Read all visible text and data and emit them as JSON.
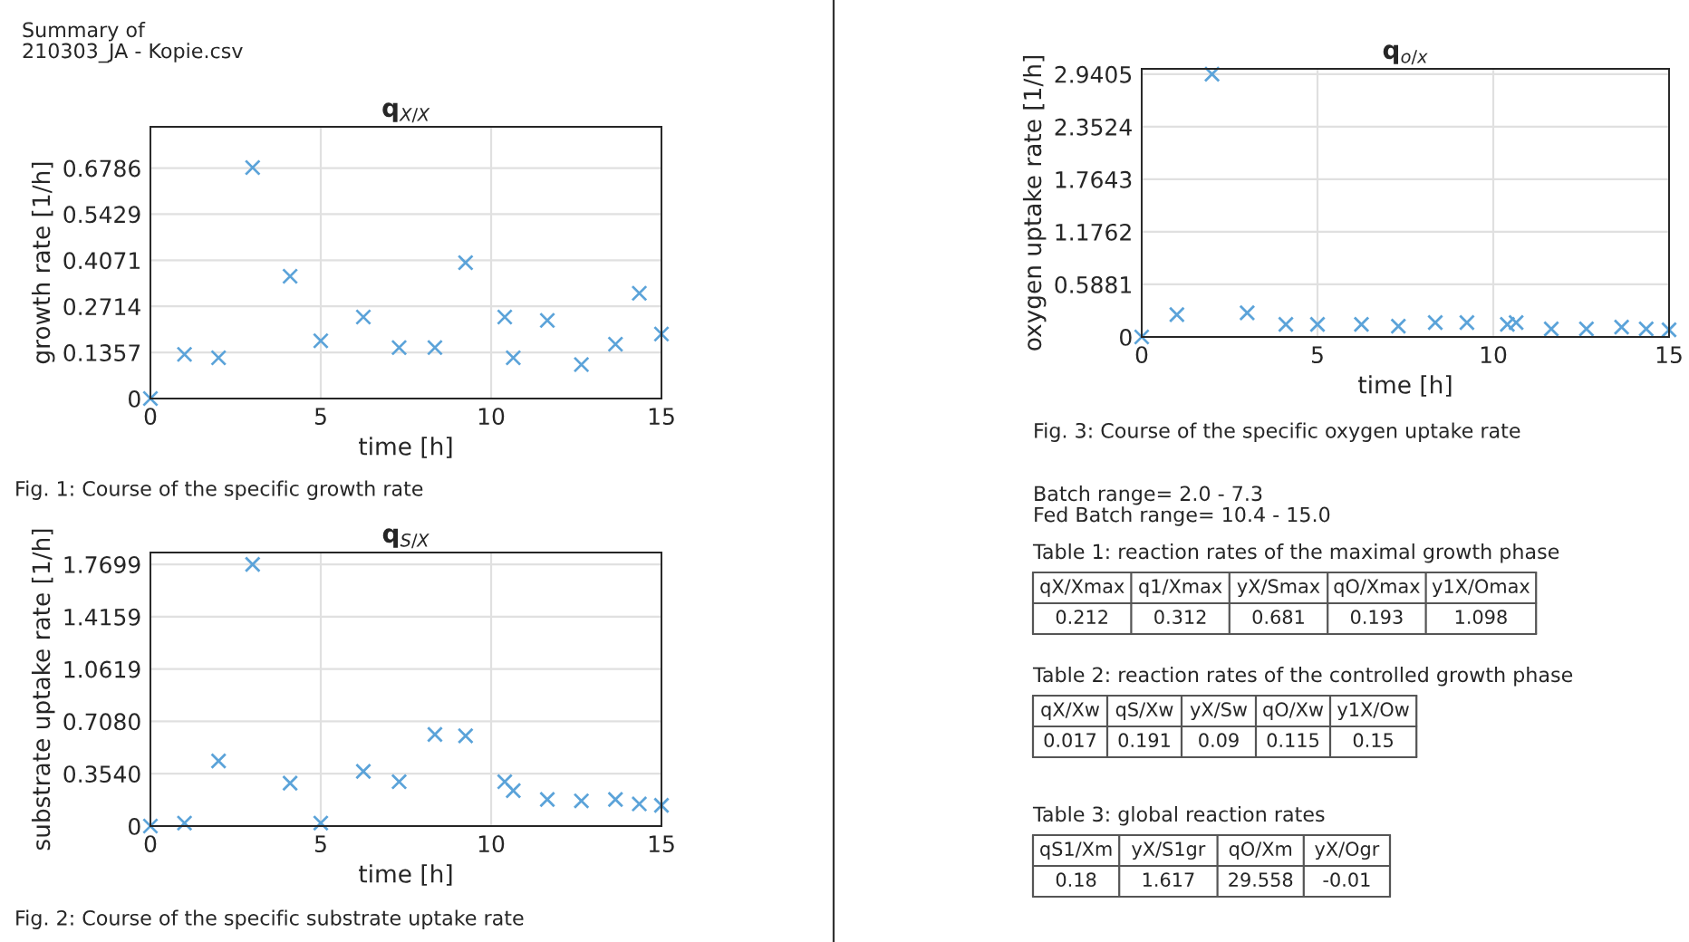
{
  "chart_data": [
    {
      "type": "scatter",
      "title": "q$_{X/X}$",
      "xlabel": "time [h]",
      "ylabel": "growth rate [1/h]",
      "marker": "cross",
      "grid": true,
      "x": [
        0,
        1,
        2,
        3,
        4.1,
        5,
        6.25,
        7.3,
        8.35,
        9.25,
        10.4,
        10.65,
        11.65,
        12.65,
        13.65,
        14.35,
        15
      ],
      "series": [
        {
          "color": "#5ba3d9",
          "values": [
            0,
            0.13,
            0.12,
            0.68,
            0.36,
            0.17,
            0.24,
            0.15,
            0.15,
            0.4,
            0.24,
            0.12,
            0.23,
            0.1,
            0.16,
            0.31,
            0.19
          ]
        }
      ],
      "xlim": [
        0,
        15
      ],
      "xticks": [
        0,
        5,
        10,
        15
      ],
      "ylim": [
        0,
        0.8
      ],
      "yticks": [
        0,
        0.1357,
        0.2714,
        0.4071,
        0.5429,
        0.6786
      ],
      "annotations": [
        "Fig. 1: Course of the specific growth rate"
      ]
    },
    {
      "type": "scatter",
      "title": "q$_{S/X}$",
      "xlabel": "time [h]",
      "ylabel": "substrate uptake rate [1/h]",
      "marker": "cross",
      "grid": true,
      "x": [
        0,
        1,
        2,
        3,
        4.1,
        5,
        6.25,
        7.3,
        8.35,
        9.25,
        10.4,
        10.65,
        11.65,
        12.65,
        13.65,
        14.35,
        15
      ],
      "series": [
        {
          "color": "#5ba3d9",
          "values": [
            0,
            0.02,
            0.44,
            1.77,
            0.29,
            0.02,
            0.37,
            0.3,
            0.62,
            0.61,
            0.3,
            0.24,
            0.18,
            0.17,
            0.18,
            0.15,
            0.14
          ]
        }
      ],
      "xlim": [
        0,
        15
      ],
      "xticks": [
        0,
        5,
        10,
        15
      ],
      "ylim": [
        0,
        1.85
      ],
      "yticks": [
        0,
        {
          "value": 0.354,
          "label": "0.3540"
        },
        {
          "value": 0.708,
          "label": "0.7080"
        },
        1.0619,
        1.4159,
        1.7699
      ],
      "annotations": [
        "Fig. 2: Course of the specific substrate uptake rate"
      ]
    },
    {
      "type": "scatter",
      "title": "q$_{o/x}$",
      "xlabel": "time [h]",
      "ylabel": "oxygen uptake rate [1/h]",
      "marker": "cross",
      "grid": true,
      "x": [
        0,
        1,
        2,
        3,
        4.1,
        5,
        6.25,
        7.3,
        8.35,
        9.25,
        10.4,
        10.65,
        11.65,
        12.65,
        13.65,
        14.35,
        15
      ],
      "series": [
        {
          "color": "#5ba3d9",
          "values": [
            0,
            0.25,
            2.94,
            0.27,
            0.14,
            0.14,
            0.14,
            0.12,
            0.16,
            0.16,
            0.14,
            0.16,
            0.09,
            0.09,
            0.11,
            0.09,
            0.08
          ]
        }
      ],
      "xlim": [
        0,
        15
      ],
      "xticks": [
        0,
        5,
        10,
        15
      ],
      "ylim": [
        0,
        3.0
      ],
      "yticks": [
        0,
        0.5881,
        1.1762,
        1.7643,
        2.3524,
        2.9405
      ],
      "annotations": [
        "Fig. 3: Course of the specific oxygen uptake rate"
      ]
    },
    {
      "type": "other",
      "annotations": [
        "Summary of\n210303_JA - Kopie.csv",
        "Batch range= 2.0 - 7.3\nFed Batch range= 10.4 - 15.0"
      ]
    },
    {
      "type": "other",
      "title": "Table 1: reaction rates of the maximal growth phase",
      "categories": [
        "qX/Xmax",
        "q1/Xmax",
        "yX/Smax",
        "qO/Xmax",
        "y1X/Omax"
      ],
      "values": [
        0.212,
        0.312,
        0.681,
        0.193,
        1.098
      ],
      "data_labels": true
    },
    {
      "type": "other",
      "title": "Table 2: reaction rates of the controlled growth phase",
      "categories": [
        "qX/Xw",
        "qS/Xw",
        "yX/Sw",
        "qO/Xw",
        "y1X/Ow"
      ],
      "values": [
        0.017,
        0.191,
        0.09,
        0.115,
        0.15
      ],
      "data_labels": true
    },
    {
      "type": "other",
      "title": "Table 3: global reaction rates",
      "categories": [
        "qS1/Xm",
        "yX/S1gr",
        "qO/Xm",
        "yX/Ogr"
      ],
      "values": [
        0.18,
        1.617,
        29.558,
        -0.01
      ],
      "data_labels": true
    }
  ]
}
